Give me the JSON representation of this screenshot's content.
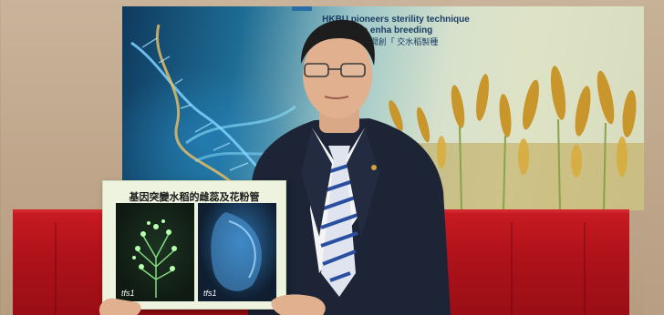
{
  "banner": {
    "line1": "HKBU pioneers     sterility technique",
    "line2": "to enha        breeding",
    "line3": "浸大開創「            交水稻製種"
  },
  "board": {
    "title": "基因突變水稻的雌蕊及花粉管",
    "panel_left_label": "tfs1",
    "panel_right_label": "tfs1"
  },
  "colors": {
    "banner_dark": "#0f3a5e",
    "tablecloth": "#b0121a",
    "suit": "#1c2436",
    "tie_stripe": "#2b4fa0"
  }
}
